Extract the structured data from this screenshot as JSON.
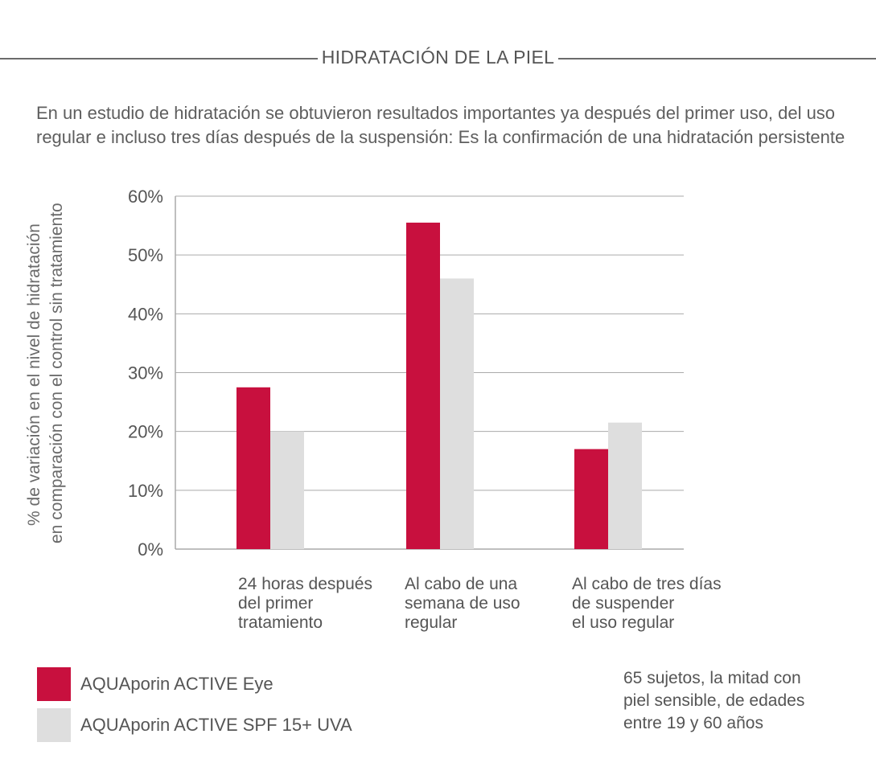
{
  "header": {
    "title": "HIDRATACIÓN DE LA PIEL"
  },
  "intro": {
    "line1": "En un estudio de hidratación se obtuvieron resultados importantes ya después del primer uso, del uso",
    "line2": "regular e incluso tres días después de la suspensión: Es la confirmación de una hidratación persistente"
  },
  "colors": {
    "eye": "#c8103e",
    "spf": "#dedede",
    "grid": "#aaaaaa",
    "axis_text": "#555555"
  },
  "chart_data": {
    "type": "bar",
    "title": "",
    "ylabel_lines": [
      "% de variación en el nivel de hidratación",
      "en comparación con el control sin tratamiento"
    ],
    "ylim": [
      0,
      60
    ],
    "yticks": [
      "0%",
      "10%",
      "20%",
      "30%",
      "40%",
      "50%",
      "60%"
    ],
    "grid": true,
    "legend_position": "bottom-left",
    "categories": [
      {
        "lines": [
          "24 horas después",
          "del primer",
          "tratamiento"
        ]
      },
      {
        "lines": [
          "Al cabo de una",
          "semana de uso",
          "regular"
        ]
      },
      {
        "lines": [
          "Al cabo de tres días",
          "de suspender",
          "el uso regular"
        ]
      }
    ],
    "series": [
      {
        "name": "AQUAporin ACTIVE Eye",
        "color": "#c8103e",
        "values": [
          27.5,
          55.5,
          17
        ]
      },
      {
        "name": "AQUAporin ACTIVE SPF 15+ UVA",
        "color": "#dedede",
        "values": [
          20,
          46,
          21.5
        ]
      }
    ]
  },
  "note": {
    "lines": [
      "65 sujetos, la mitad con",
      "piel sensible, de edades",
      "entre 19 y 60 años"
    ]
  }
}
